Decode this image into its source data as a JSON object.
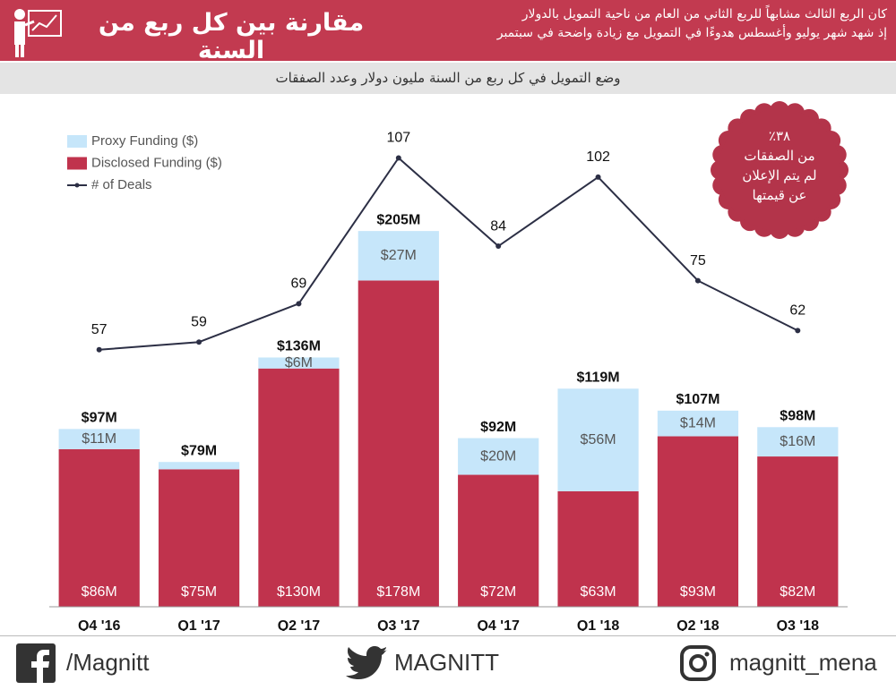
{
  "header": {
    "title": "مقارنة بين كل ربع من السنة",
    "subtitle": [
      "كان الربع الثالث مشابهاً للربع الثاني من العام من ناحية التمويل بالدولار",
      "إذ شهد شهر يوليو وأغسطس هدوءًا في التمويل مع زيادة واضحة في سبتمبر"
    ]
  },
  "chart_data": {
    "type": "bar",
    "stacked": true,
    "title": "وضع التمويل في كل ربع من السنة مليون دولار وعدد الصفقات",
    "categories": [
      "Q4 '16",
      "Q1 '17",
      "Q2 '17",
      "Q3 '17",
      "Q4 '17",
      "Q1 '18",
      "Q2 '18",
      "Q3 '18"
    ],
    "series": [
      {
        "name": "Disclosed Funding ($)",
        "color": "#c0334d",
        "values": [
          86,
          75,
          130,
          178,
          72,
          63,
          93,
          82
        ],
        "value_labels": [
          "$86M",
          "$75M",
          "$130M",
          "$178M",
          "$72M",
          "$63M",
          "$93M",
          "$82M"
        ]
      },
      {
        "name": "Proxy Funding ($)",
        "color": "#c6e6fa",
        "values": [
          11,
          4,
          6,
          27,
          20,
          56,
          14,
          16
        ],
        "value_labels": [
          "$11M",
          null,
          "$6M",
          "$27M",
          "$20M",
          "$56M",
          "$14M",
          "$16M"
        ]
      },
      {
        "name": "# of Deals",
        "color": "#2c2f45",
        "type": "line",
        "axis": "y2",
        "values": [
          57,
          59,
          69,
          107,
          84,
          102,
          75,
          62
        ]
      }
    ],
    "totals": {
      "values": [
        97,
        79,
        136,
        205,
        92,
        119,
        107,
        98
      ],
      "value_labels": [
        "$97M",
        "$79M",
        "$136M",
        "$205M",
        "$92M",
        "$119M",
        "$107M",
        "$98M"
      ]
    },
    "ylim": [
      0,
      270
    ],
    "y2lim": [
      -10,
      119
    ],
    "grid": false,
    "legend": "top-left"
  },
  "badge": {
    "lines": [
      "٣٨٪",
      "من الصفقات",
      "لم يتم الإعلان",
      "عن قيمتها"
    ]
  },
  "footer": {
    "facebook": "/Magnitt",
    "twitter": "MAGNITT",
    "instagram": "magnitt_mena"
  }
}
